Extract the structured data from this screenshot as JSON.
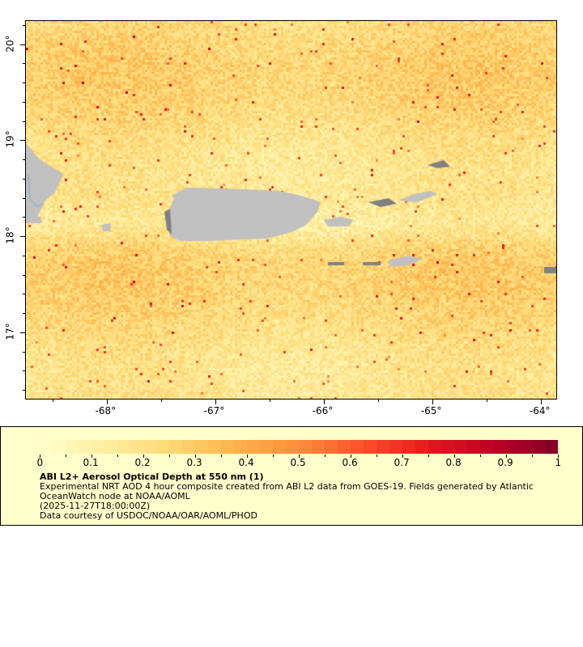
{
  "map": {
    "lon_range": [
      -68.75,
      -63.85
    ],
    "lat_range": [
      16.3,
      20.25
    ],
    "x_ticks": [
      {
        "value": -68,
        "label": "-68°"
      },
      {
        "value": -67,
        "label": "-67°"
      },
      {
        "value": -66,
        "label": "-66°"
      },
      {
        "value": -65,
        "label": "-65°"
      },
      {
        "value": -64,
        "label": "-64°"
      }
    ],
    "y_ticks": [
      {
        "value": 20,
        "label": "20°"
      },
      {
        "value": 19,
        "label": "19°"
      },
      {
        "value": 18,
        "label": "18°"
      },
      {
        "value": 17,
        "label": "17°"
      }
    ],
    "land_color": "#c0c0c0",
    "nodata_color": "#808080"
  },
  "legend": {
    "colorbar_range": [
      0,
      1
    ],
    "colorbar_labels": [
      "0",
      "0.1",
      "0.2",
      "0.3",
      "0.4",
      "0.5",
      "0.6",
      "0.7",
      "0.8",
      "0.9",
      "1"
    ],
    "colors": [
      "#ffffcc",
      "#ffeda0",
      "#fed976",
      "#feb24c",
      "#fd8d3c",
      "#fc4e2a",
      "#e31a1c",
      "#bd0026",
      "#800026"
    ],
    "title": "ABI L2+ Aerosol Optical Depth at 550 nm (1)",
    "line1": "Experimental NRT AOD 4 hour composite created from ABI L2 data from GOES-19. Fields generated by Atlantic",
    "line2": "OceanWatch node at NOAA/AOML",
    "line3": "(2025-11-27T18:00:00Z)",
    "line4": "Data courtesy of USDOC/NOAA/OAR/AOML/PHOD"
  }
}
